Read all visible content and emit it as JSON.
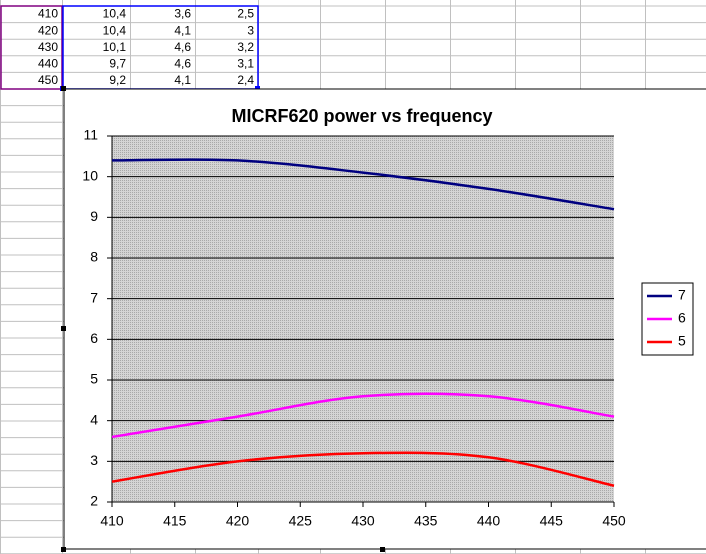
{
  "sheet": {
    "rows": [
      [
        "410",
        "10,4",
        "3,6",
        "2,5"
      ],
      [
        "420",
        "10,4",
        "4,1",
        "3"
      ],
      [
        "430",
        "10,1",
        "4,6",
        "3,2"
      ],
      [
        "440",
        "9,7",
        "4,6",
        "3,1"
      ],
      [
        "450",
        "9,2",
        "4,1",
        "2,4"
      ]
    ]
  },
  "chart_data": {
    "type": "line",
    "title": "MICRF620 power vs frequency",
    "x": [
      410,
      420,
      430,
      440,
      450
    ],
    "series": [
      {
        "name": "7",
        "color": "#000080",
        "values": [
          10.4,
          10.4,
          10.1,
          9.7,
          9.2
        ]
      },
      {
        "name": "6",
        "color": "#ff00ff",
        "values": [
          3.6,
          4.1,
          4.6,
          4.6,
          4.1
        ]
      },
      {
        "name": "5",
        "color": "#ff0000",
        "values": [
          2.5,
          3,
          3.2,
          3.1,
          2.4
        ]
      }
    ],
    "xlim": [
      410,
      450
    ],
    "xticks": [
      410,
      415,
      420,
      425,
      430,
      435,
      440,
      445,
      450
    ],
    "ylim": [
      2,
      11
    ],
    "yticks": [
      2,
      3,
      4,
      5,
      6,
      7,
      8,
      9,
      10,
      11
    ],
    "grid": true,
    "legend": "right",
    "smooth": true
  }
}
